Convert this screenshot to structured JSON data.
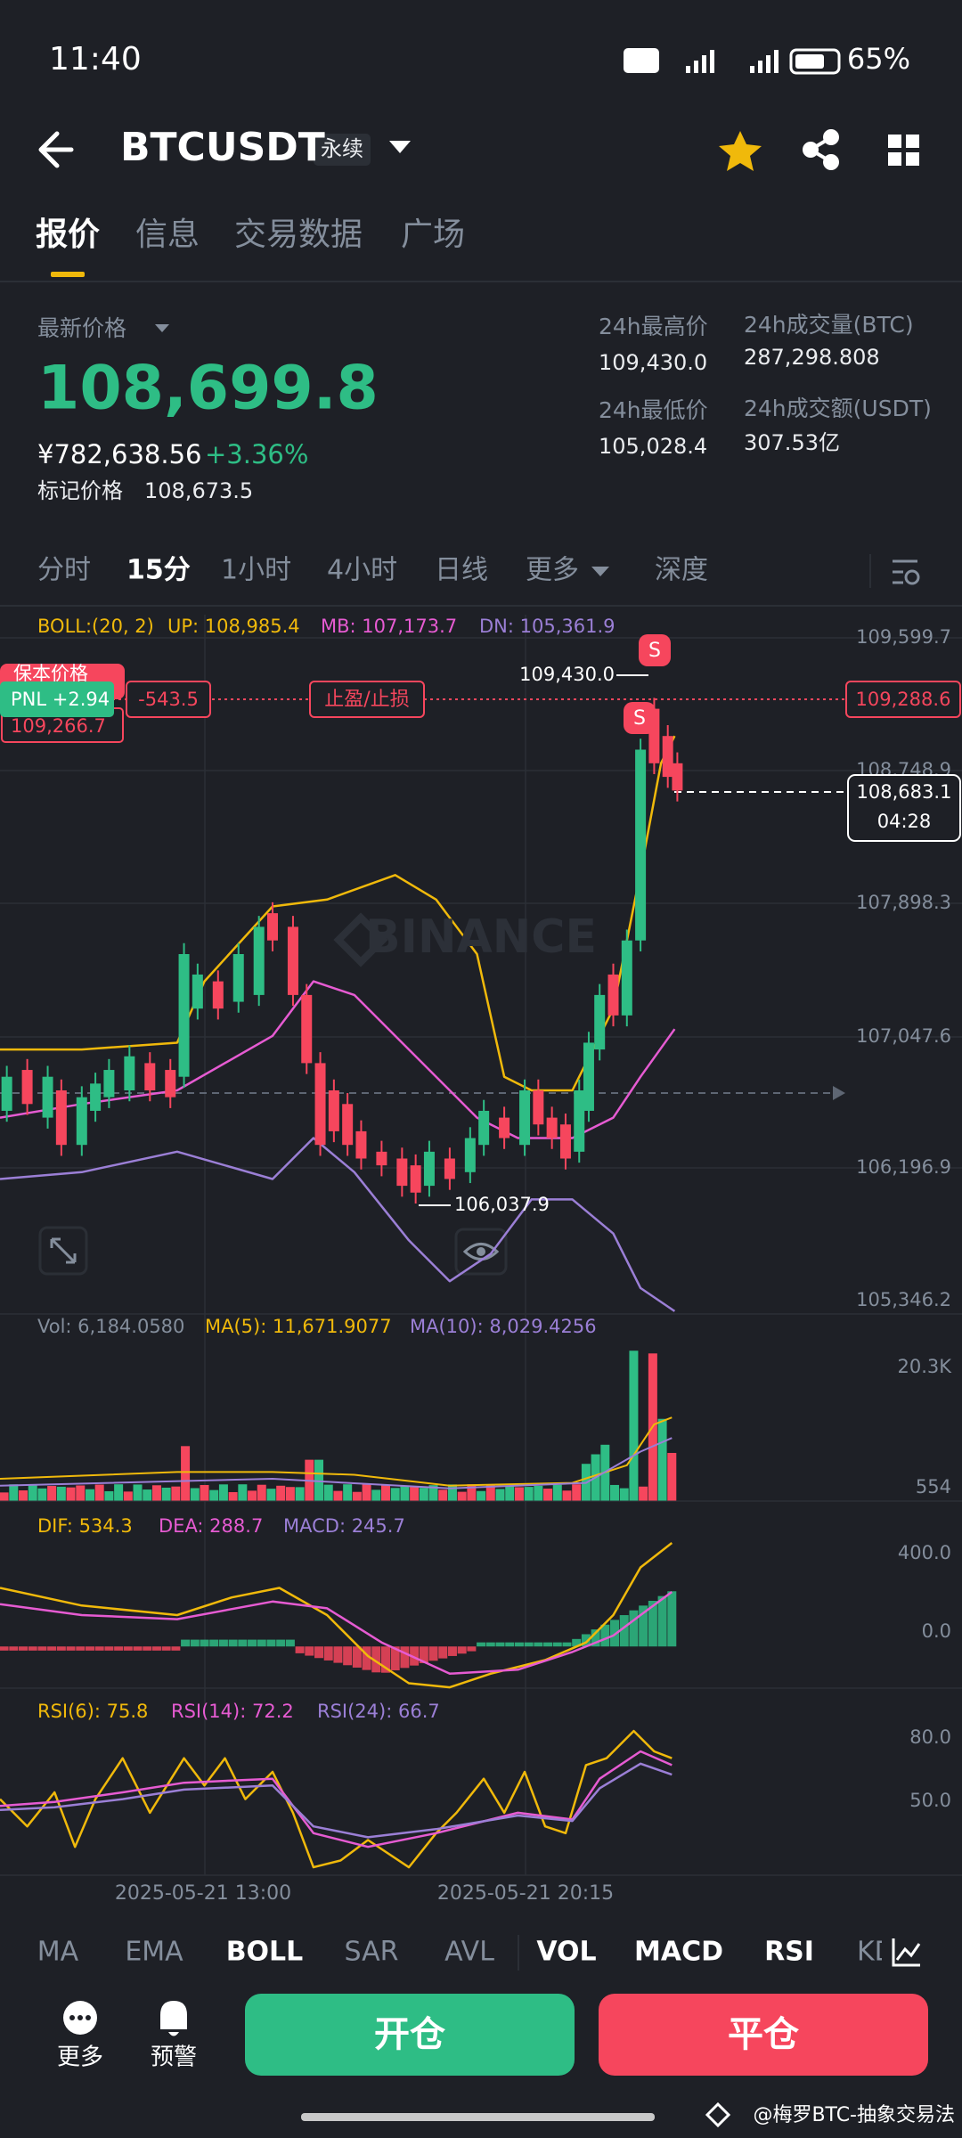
{
  "status": {
    "time": "11:40",
    "battery": "65%"
  },
  "header": {
    "symbol": "BTCUSDT",
    "contract_type": "永续"
  },
  "tabs": [
    "报价",
    "信息",
    "交易数据",
    "广场"
  ],
  "quote": {
    "latest_label": "最新价格",
    "price": "108,699.8",
    "cny_price": "¥782,638.56",
    "change": "+3.36%",
    "mark_label": "标记价格",
    "mark_price": "108,673.5"
  },
  "stats": [
    {
      "label": "24h最高价",
      "value": "109,430.0"
    },
    {
      "label": "24h成交量(BTC)",
      "value": "287,298.808"
    },
    {
      "label": "24h最低价",
      "value": "105,028.4"
    },
    {
      "label": "24h成交额(USDT)",
      "value": "307.53亿"
    }
  ],
  "intervals": [
    "分时",
    "15分",
    "1小时",
    "4小时",
    "日线",
    "更多",
    "深度"
  ],
  "boll": {
    "params": "BOLL:(20, 2)",
    "up": "UP: 108,985.4",
    "mb": "MB: 107,173.7",
    "dn": "DN: 105,361.9"
  },
  "price_axis": [
    "109,599.7",
    "108,748.9",
    "107,898.3",
    "107,047.6",
    "106,196.9",
    "105,346.2"
  ],
  "markers": {
    "high": "109,430.0",
    "low": "106,037.9",
    "signal_1": "S",
    "signal_2": "S",
    "pnl": "PNL +2.94",
    "tp_sl_amount": "-543.5",
    "tp_sl_button": "止盈/止损",
    "tp_sl_price": "109,288.6",
    "breakeven_label": "保本价格",
    "breakeven_price": "109,266.7",
    "current_price": "108,683.1",
    "countdown": "04:28",
    "watermark": "BINANCE"
  },
  "volume": {
    "vol": "Vol: 6,184.0580",
    "ma5": "MA(5): 11,671.9077",
    "ma10": "MA(10): 8,029.4256",
    "axis": [
      "20.3K",
      "554"
    ]
  },
  "macd": {
    "dif": "DIF: 534.3",
    "dea": "DEA: 288.7",
    "macd": "MACD: 245.7",
    "axis": [
      "400.0",
      "0.0"
    ]
  },
  "rsi": {
    "rsi6": "RSI(6): 75.8",
    "rsi14": "RSI(14): 72.2",
    "rsi24": "RSI(24): 66.7",
    "axis": [
      "80.0",
      "50.0"
    ]
  },
  "time_axis": [
    "2025-05-21 13:00",
    "2025-05-21 20:15"
  ],
  "indicators": [
    "MA",
    "EMA",
    "BOLL",
    "SAR",
    "AVL",
    "VOL",
    "MACD",
    "RSI",
    "KDJ"
  ],
  "bottom": {
    "more": "更多",
    "alert": "预警",
    "open": "开仓",
    "close": "平仓"
  },
  "footer": {
    "watermark": "@梅罗BTC-抽象交易法"
  }
}
